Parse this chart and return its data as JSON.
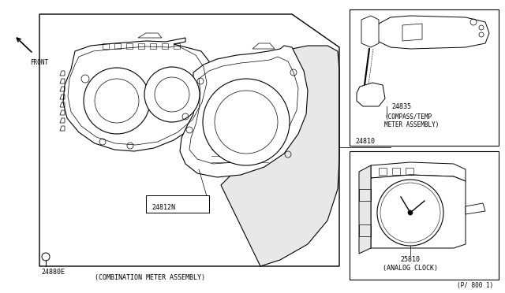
{
  "bg_color": "#ffffff",
  "lc": "#000000",
  "tc": "#000000",
  "fig_width": 6.4,
  "fig_height": 3.72,
  "dpi": 100,
  "labels": {
    "main_part": "24880E",
    "main_caption": "(COMBINATION METER ASSEMBLY)",
    "sub_part1": "24812N",
    "ref_label": "24810",
    "part2_num": "24835",
    "part2_cap1": "(COMPASS/TEMP",
    "part2_cap2": "METER ASSEMBLY)",
    "part3_num": "25810",
    "part3_cap": "(ANALOG CLOCK)",
    "page_ref": "(P/ 800 1)",
    "front": "FRONT"
  }
}
